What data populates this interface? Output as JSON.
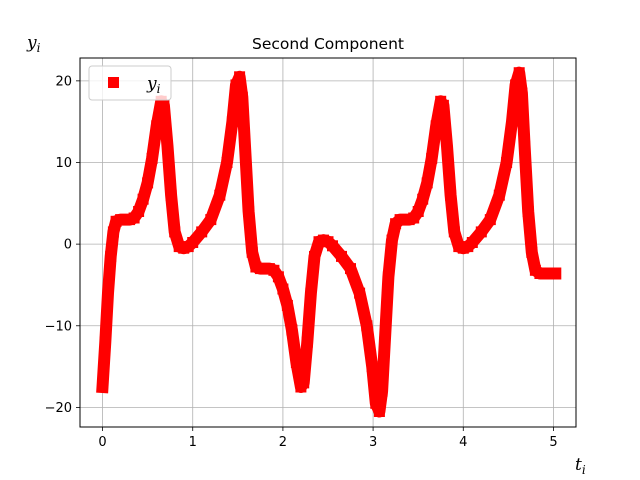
{
  "chart_data": {
    "type": "scatter",
    "title": "Second Component",
    "xlabel": "t",
    "xlabel_sub": "i",
    "ylabel": "y",
    "ylabel_sub": "i",
    "legend": {
      "label": "y",
      "label_sub": "i",
      "placement": "upper-left",
      "marker": "square"
    },
    "xlim": [
      -0.25,
      5.25
    ],
    "ylim": [
      -22.4,
      22.8
    ],
    "xticks": [
      0,
      1,
      2,
      3,
      4,
      5
    ],
    "yticks": [
      -20,
      -10,
      0,
      10,
      20
    ],
    "grid": true,
    "color": "#ff0000",
    "series": [
      {
        "name": "y_i",
        "points": [
          [
            0.0,
            -17.5
          ],
          [
            0.03,
            -12.0
          ],
          [
            0.06,
            -6.0
          ],
          [
            0.09,
            -1.5
          ],
          [
            0.12,
            1.5
          ],
          [
            0.15,
            2.8
          ],
          [
            0.2,
            3.0
          ],
          [
            0.25,
            3.0
          ],
          [
            0.3,
            3.0
          ],
          [
            0.35,
            3.2
          ],
          [
            0.4,
            4.0
          ],
          [
            0.45,
            5.5
          ],
          [
            0.5,
            7.5
          ],
          [
            0.55,
            10.5
          ],
          [
            0.6,
            14.5
          ],
          [
            0.65,
            17.5
          ],
          [
            0.68,
            17.0
          ],
          [
            0.72,
            12.0
          ],
          [
            0.76,
            6.0
          ],
          [
            0.8,
            1.5
          ],
          [
            0.85,
            -0.3
          ],
          [
            0.9,
            -0.5
          ],
          [
            0.95,
            -0.3
          ],
          [
            1.0,
            0.2
          ],
          [
            1.1,
            1.5
          ],
          [
            1.2,
            3.0
          ],
          [
            1.3,
            6.0
          ],
          [
            1.38,
            10.0
          ],
          [
            1.44,
            15.0
          ],
          [
            1.48,
            19.5
          ],
          [
            1.52,
            20.5
          ],
          [
            1.55,
            18.0
          ],
          [
            1.58,
            12.0
          ],
          [
            1.62,
            4.0
          ],
          [
            1.66,
            -1.0
          ],
          [
            1.7,
            -2.8
          ],
          [
            1.75,
            -3.0
          ],
          [
            1.8,
            -3.0
          ],
          [
            1.85,
            -3.0
          ],
          [
            1.9,
            -3.2
          ],
          [
            1.95,
            -4.0
          ],
          [
            2.0,
            -5.5
          ],
          [
            2.05,
            -7.5
          ],
          [
            2.1,
            -10.5
          ],
          [
            2.15,
            -14.5
          ],
          [
            2.2,
            -17.5
          ],
          [
            2.23,
            -17.0
          ],
          [
            2.27,
            -12.0
          ],
          [
            2.31,
            -6.0
          ],
          [
            2.35,
            -1.5
          ],
          [
            2.4,
            0.3
          ],
          [
            2.45,
            0.5
          ],
          [
            2.5,
            0.3
          ],
          [
            2.55,
            -0.2
          ],
          [
            2.65,
            -1.5
          ],
          [
            2.75,
            -3.0
          ],
          [
            2.85,
            -6.0
          ],
          [
            2.93,
            -10.0
          ],
          [
            2.99,
            -15.0
          ],
          [
            3.03,
            -19.5
          ],
          [
            3.07,
            -20.5
          ],
          [
            3.1,
            -18.0
          ],
          [
            3.13,
            -12.0
          ],
          [
            3.17,
            -4.0
          ],
          [
            3.21,
            0.5
          ],
          [
            3.25,
            2.5
          ],
          [
            3.3,
            3.0
          ],
          [
            3.35,
            3.0
          ],
          [
            3.4,
            3.0
          ],
          [
            3.45,
            3.2
          ],
          [
            3.5,
            4.0
          ],
          [
            3.55,
            5.5
          ],
          [
            3.6,
            7.5
          ],
          [
            3.65,
            10.5
          ],
          [
            3.7,
            14.5
          ],
          [
            3.75,
            17.5
          ],
          [
            3.78,
            17.0
          ],
          [
            3.82,
            12.0
          ],
          [
            3.86,
            6.0
          ],
          [
            3.9,
            1.5
          ],
          [
            3.95,
            -0.3
          ],
          [
            4.0,
            -0.5
          ],
          [
            4.05,
            -0.3
          ],
          [
            4.1,
            0.2
          ],
          [
            4.2,
            1.5
          ],
          [
            4.3,
            3.0
          ],
          [
            4.4,
            6.0
          ],
          [
            4.48,
            10.0
          ],
          [
            4.54,
            15.0
          ],
          [
            4.58,
            19.5
          ],
          [
            4.62,
            21.0
          ],
          [
            4.65,
            18.5
          ],
          [
            4.68,
            12.0
          ],
          [
            4.72,
            4.0
          ],
          [
            4.76,
            -1.0
          ],
          [
            4.8,
            -3.2
          ],
          [
            4.85,
            -3.6
          ],
          [
            4.9,
            -3.6
          ],
          [
            4.95,
            -3.6
          ],
          [
            5.0,
            -3.6
          ],
          [
            5.02,
            -3.6
          ]
        ]
      }
    ]
  }
}
